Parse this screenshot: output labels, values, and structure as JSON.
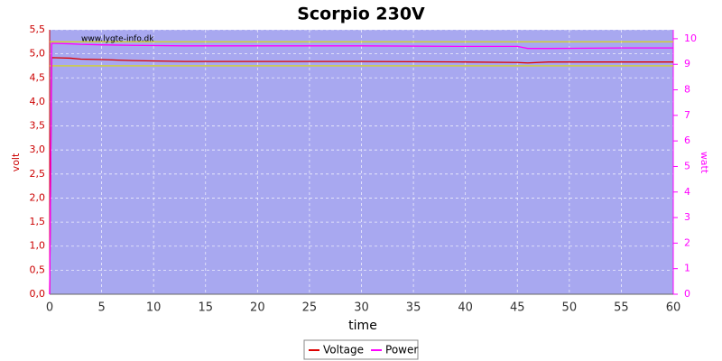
{
  "chart_data": {
    "type": "line",
    "title": "Scorpio 230V",
    "watermark": "www.lygte-info.dk",
    "xlabel": "time",
    "ylabel": "volt",
    "y2label": "watt",
    "x": [
      0,
      0.2,
      2,
      3,
      5,
      8,
      13,
      20,
      30,
      40,
      45,
      46,
      48,
      55,
      60
    ],
    "series": [
      {
        "name": "Voltage",
        "color": "#dd0000",
        "values": [
          0,
          4.92,
          4.91,
          4.89,
          4.88,
          4.86,
          4.84,
          4.84,
          4.84,
          4.83,
          4.82,
          4.81,
          4.83,
          4.83,
          4.83
        ]
      },
      {
        "name": "Power",
        "color": "#ff00ff",
        "axis": "y2",
        "values": [
          0,
          9.82,
          9.8,
          9.78,
          9.76,
          9.74,
          9.72,
          9.72,
          9.72,
          9.7,
          9.7,
          9.62,
          9.62,
          9.64,
          9.64
        ]
      }
    ],
    "reference_lines": [
      5.25,
      4.75
    ],
    "reference_color": "#dddd00",
    "xlim": [
      0,
      60
    ],
    "xticks": [
      0,
      5,
      10,
      15,
      20,
      25,
      30,
      35,
      40,
      45,
      50,
      55,
      60
    ],
    "ylim": [
      0,
      5.5
    ],
    "yticks": [
      {
        "value": 0,
        "label": "0,0"
      },
      {
        "value": 0.5,
        "label": "0,5"
      },
      {
        "value": 1,
        "label": "1,0"
      },
      {
        "value": 1.5,
        "label": "1,5"
      },
      {
        "value": 2,
        "label": "2,0"
      },
      {
        "value": 2.5,
        "label": "2,5"
      },
      {
        "value": 3,
        "label": "3,0"
      },
      {
        "value": 3.5,
        "label": "3,5"
      },
      {
        "value": 4,
        "label": "4,0"
      },
      {
        "value": 4.5,
        "label": "4,5"
      },
      {
        "value": 5,
        "label": "5,0"
      },
      {
        "value": 5.5,
        "label": "5,5"
      }
    ],
    "y2lim": [
      0,
      10.35
    ],
    "y2ticks": [
      0,
      1,
      2,
      3,
      4,
      5,
      6,
      7,
      8,
      9,
      10
    ],
    "grid": true,
    "legend": "bottom",
    "background": "#a8a8f0"
  }
}
